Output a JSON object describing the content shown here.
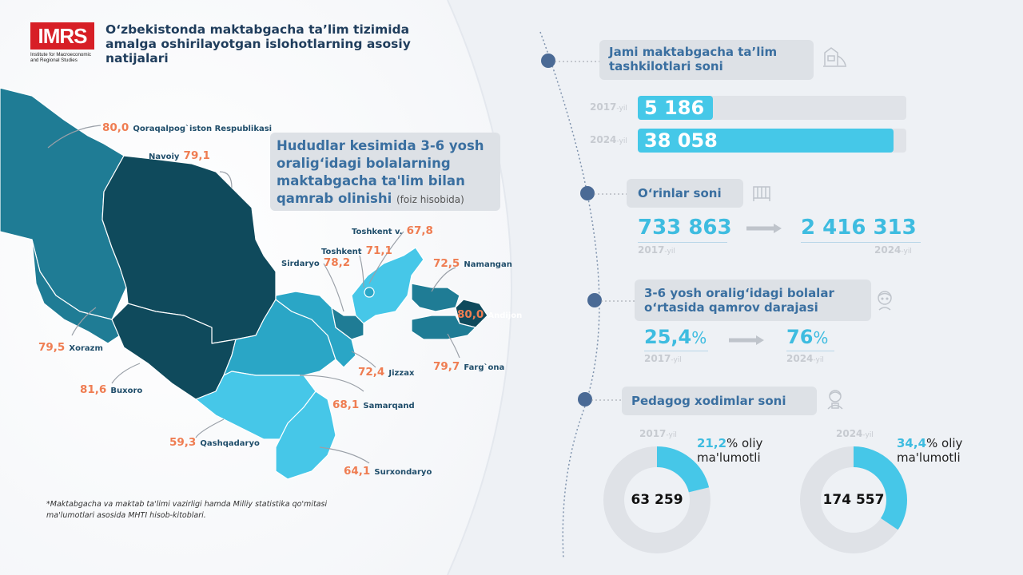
{
  "header": {
    "logo_text": "IMRS",
    "logo_sub": "Institute for Macroeconomic and Regional Studies",
    "title": "O‘zbekistonda maktabgacha ta’lim tizimida amalga oshirilayotgan islohotlarning asosiy natijalari"
  },
  "map": {
    "title": "Hududlar kesimida 3-6 yosh oralig‘idagi bolalarning maktabgacha ta'lim bilan qamrab olinishi",
    "unit": "(foiz hisobida)",
    "regions": [
      {
        "name": "Qoraqalpog`iston Respublikasi",
        "value": "80,0"
      },
      {
        "name": "Navoiy",
        "value": "79,1"
      },
      {
        "name": "Xorazm",
        "value": "79,5"
      },
      {
        "name": "Buxoro",
        "value": "81,6"
      },
      {
        "name": "Qashqadaryo",
        "value": "59,3"
      },
      {
        "name": "Surxondaryo",
        "value": "64,1"
      },
      {
        "name": "Samarqand",
        "value": "68,1"
      },
      {
        "name": "Jizzax",
        "value": "72,4"
      },
      {
        "name": "Sirdaryo",
        "value": "78,2"
      },
      {
        "name": "Toshkent",
        "value": "71,1"
      },
      {
        "name": "Toshkent v.",
        "value": "67,8"
      },
      {
        "name": "Namangan",
        "value": "72,5"
      },
      {
        "name": "Andijon",
        "value": "80,0"
      },
      {
        "name": "Farg`ona",
        "value": "79,7"
      }
    ],
    "colors": {
      "dark": "#0f4a5c",
      "mid": "#1f7c95",
      "medium": "#2aa6c6",
      "light": "#46c7e8",
      "value": "#ef7d52"
    }
  },
  "footnote": "*Maktabgacha va maktab ta'limi vazirligi hamda Milliy statistika qo'mitasi ma'lumotlari asosida MHTI hisob-kitoblari.",
  "sections": {
    "orgs": {
      "title": "Jami maktabgacha ta’lim tashkilotlari soni",
      "icon": "playground-icon",
      "rows": [
        {
          "year": "2017",
          "suffix": "-yil",
          "value": "5 186",
          "fraction": 0.136
        },
        {
          "year": "2024",
          "suffix": "-yil",
          "value": "38 058",
          "fraction": 1.0
        }
      ]
    },
    "places": {
      "title": "O‘rinlar soni",
      "icon": "crib-icon",
      "from": {
        "value": "733 863",
        "year": "2017",
        "suffix": "-yil"
      },
      "to": {
        "value": "2 416 313",
        "year": "2024",
        "suffix": "-yil"
      }
    },
    "coverage": {
      "title": "3-6 yosh oralig‘idagi bolalar o‘rtasida qamrov darajasi",
      "icon": "child-icon",
      "from": {
        "value": "25,4",
        "percent": "%",
        "year": "2017",
        "suffix": "-yil"
      },
      "to": {
        "value": "76",
        "percent": "%",
        "year": "2024",
        "suffix": "-yil"
      }
    },
    "staff": {
      "title": "Pedagog xodimlar soni",
      "icon": "teacher-icon",
      "items": [
        {
          "year": "2017",
          "suffix": "-yil",
          "total": "63 259",
          "share": "21,2",
          "share_label": "% oliy",
          "share_label2": "ma'lumotli",
          "fraction": 0.212
        },
        {
          "year": "2024",
          "suffix": "-yil",
          "total": "174 557",
          "share": "34,4",
          "share_label": "% oliy",
          "share_label2": "ma'lumotli",
          "fraction": 0.344
        }
      ]
    }
  }
}
